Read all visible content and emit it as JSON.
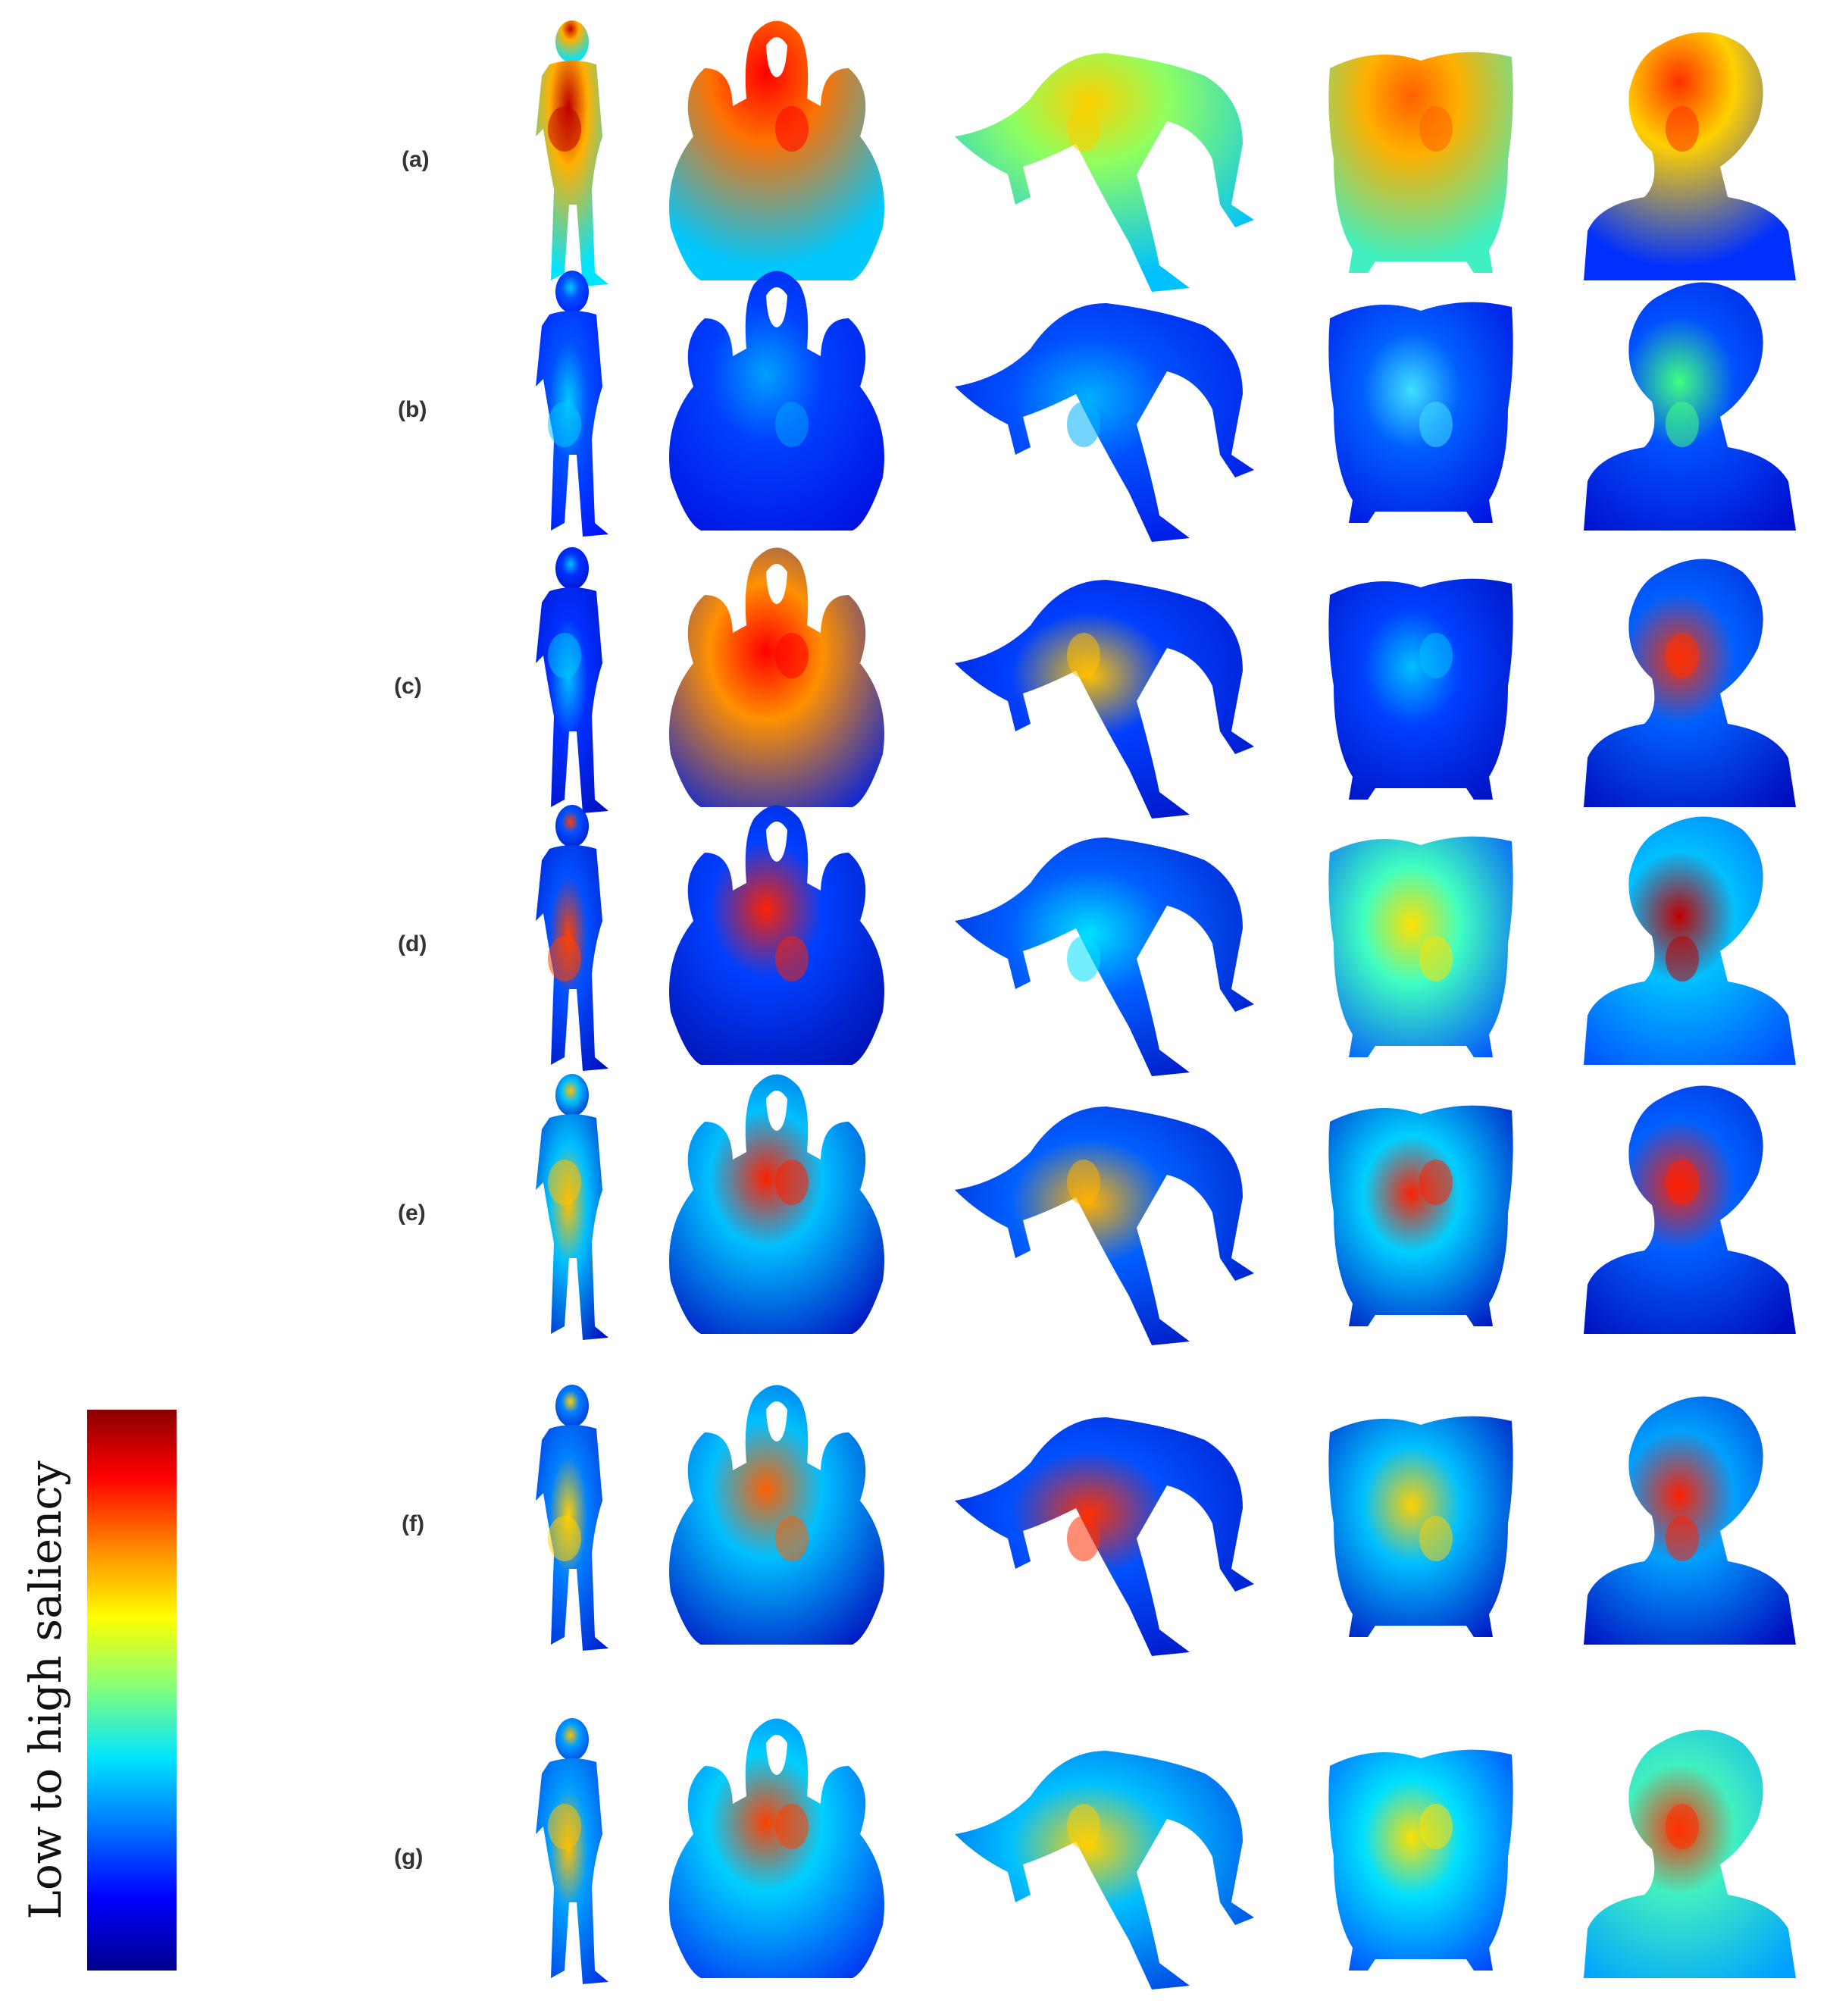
{
  "row_labels": [
    "(a)",
    "(b)",
    "(c)",
    "(d)",
    "(e)",
    "(f)",
    "(g)"
  ],
  "models": [
    "human figure",
    "amphora vase",
    "acrobat",
    "carved bowl",
    "bust"
  ],
  "colorbar": {
    "label": "Low to high saliency",
    "colors": [
      "#00008c",
      "#0000ff",
      "#0070ff",
      "#00e5ff",
      "#7fff7f",
      "#ffff00",
      "#ff8c00",
      "#ff0000",
      "#8b0000"
    ]
  },
  "saliency_maps": [
    {
      "human": [
        "#00e5ff",
        "#ffb000",
        "#c00000"
      ],
      "vase": [
        "#00c8ff",
        "#ff7000",
        "#ff0000"
      ],
      "acrobat": [
        "#00c0ff",
        "#90ff60",
        "#ffd000"
      ],
      "bowl": [
        "#40f0c0",
        "#ffb000",
        "#ff6000"
      ],
      "bust": [
        "#0030ff",
        "#ffd000",
        "#ff3000"
      ]
    },
    {
      "human": [
        "#0010ff",
        "#0050ff",
        "#00c8ff"
      ],
      "vase": [
        "#0010e0",
        "#0040ff",
        "#00a0ff"
      ],
      "acrobat": [
        "#0010e0",
        "#0050ff",
        "#00b0ff"
      ],
      "bowl": [
        "#0010e0",
        "#0060ff",
        "#40e0ff"
      ],
      "bust": [
        "#0010d0",
        "#0050ff",
        "#40ff80"
      ]
    },
    {
      "human": [
        "#0010c0",
        "#0030ff",
        "#00c0ff"
      ],
      "vase": [
        "#0020e0",
        "#ff9000",
        "#ff0000"
      ],
      "acrobat": [
        "#0010c0",
        "#0040ff",
        "#ffc000"
      ],
      "bowl": [
        "#0010c0",
        "#0040ff",
        "#00c0ff"
      ],
      "bust": [
        "#0010c0",
        "#0060ff",
        "#ff3000"
      ]
    },
    {
      "human": [
        "#0010c0",
        "#0050ff",
        "#ff4000"
      ],
      "vase": [
        "#0010b0",
        "#0040ff",
        "#ff2000"
      ],
      "acrobat": [
        "#0010c0",
        "#0060ff",
        "#00e0ff"
      ],
      "bowl": [
        "#0050ff",
        "#40ffc0",
        "#ffe000"
      ],
      "bust": [
        "#0050ff",
        "#00c0ff",
        "#c00000"
      ]
    },
    {
      "human": [
        "#0010c0",
        "#00c0ff",
        "#ffc000"
      ],
      "vase": [
        "#0010c0",
        "#00c0ff",
        "#ff2000"
      ],
      "acrobat": [
        "#0010c0",
        "#0060ff",
        "#ffb000"
      ],
      "bowl": [
        "#0010c0",
        "#00d0ff",
        "#ff2000"
      ],
      "bust": [
        "#0010c0",
        "#0060ff",
        "#ff2000"
      ]
    },
    {
      "human": [
        "#0020d0",
        "#0080ff",
        "#ffd000"
      ],
      "vase": [
        "#0010c0",
        "#00c0ff",
        "#ff6000"
      ],
      "acrobat": [
        "#0010c0",
        "#0050ff",
        "#ff3000"
      ],
      "bowl": [
        "#0010c0",
        "#00c0ff",
        "#ffd000"
      ],
      "bust": [
        "#0010c0",
        "#00a0ff",
        "#ff2000"
      ]
    },
    {
      "human": [
        "#0030e0",
        "#00a0ff",
        "#ffc000"
      ],
      "vase": [
        "#0030f0",
        "#00d0ff",
        "#ff4000"
      ],
      "acrobat": [
        "#0030e0",
        "#00c0ff",
        "#ffd000"
      ],
      "bowl": [
        "#0040ff",
        "#00e0ff",
        "#ffe000"
      ],
      "bust": [
        "#00a0ff",
        "#40f0c0",
        "#ff3000"
      ]
    }
  ]
}
